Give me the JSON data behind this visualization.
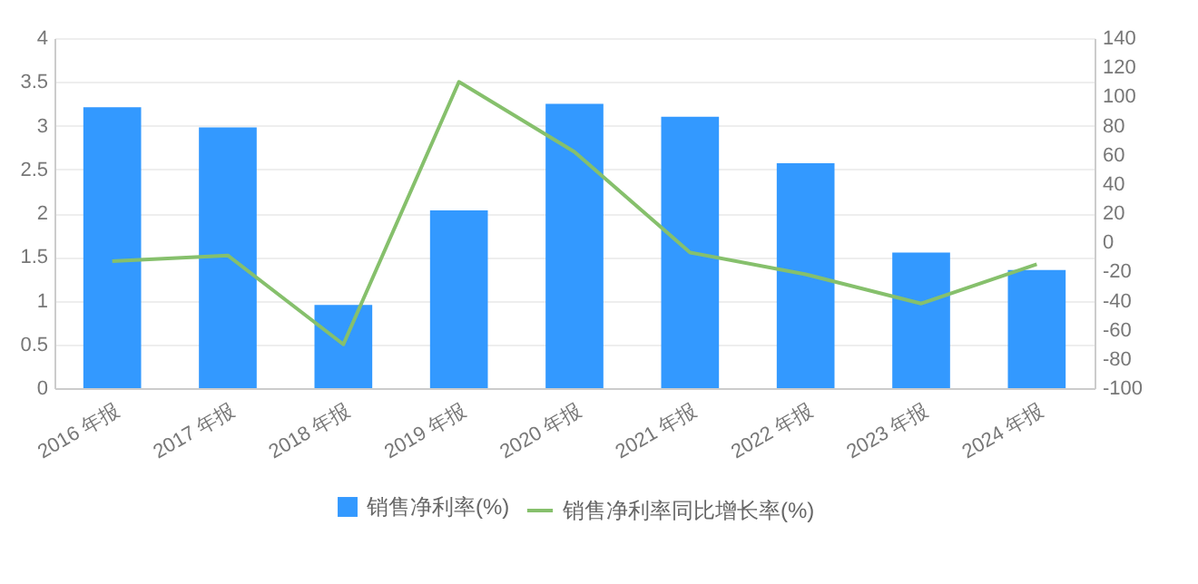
{
  "chart_data": {
    "type": "bar",
    "categories": [
      "2016 年报",
      "2017 年报",
      "2018 年报",
      "2019 年报",
      "2020 年报",
      "2021 年报",
      "2022 年报",
      "2023 年报",
      "2024 年报"
    ],
    "series": [
      {
        "name": "销售净利率(%)",
        "color": "#3399ff",
        "values": [
          3.21,
          2.98,
          0.95,
          2.03,
          3.25,
          3.1,
          2.57,
          1.55,
          1.35
        ]
      },
      {
        "name": "销售净利率同比增长率(%)",
        "type": "line",
        "axis": "y2",
        "color": "#86c06c",
        "values": [
          -13,
          -9,
          -70,
          110,
          62,
          -7,
          -22,
          -42,
          -15
        ]
      }
    ],
    "ylim": [
      0,
      4
    ],
    "yticks": [
      0,
      0.5,
      1,
      1.5,
      2,
      2.5,
      3,
      3.5,
      4
    ],
    "y2lim": [
      -100,
      140
    ],
    "y2ticks": [
      -100,
      -80,
      -60,
      -40,
      -20,
      0,
      20,
      40,
      60,
      80,
      100,
      120,
      140
    ],
    "grid": "y",
    "legend": "bottom",
    "marker": "none"
  }
}
